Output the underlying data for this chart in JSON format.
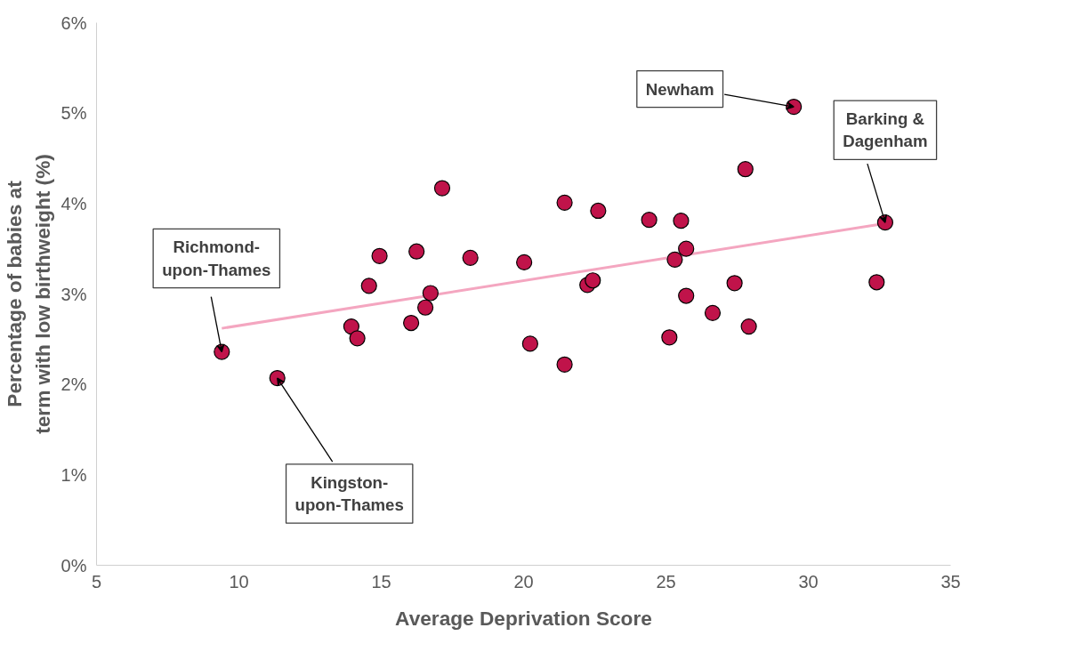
{
  "chart_data": {
    "type": "scatter",
    "xlabel": "Average Deprivation Score",
    "ylabel": "Percentage of babies at term with low birthweight (%)",
    "xlim": [
      5,
      35
    ],
    "xticks": [
      5,
      10,
      15,
      20,
      25,
      30,
      35
    ],
    "ylim": [
      0,
      6
    ],
    "yticks": [
      {
        "value": 0,
        "label": "0%"
      },
      {
        "value": 1,
        "label": "1%"
      },
      {
        "value": 2,
        "label": "2%"
      },
      {
        "value": 3,
        "label": "3%"
      },
      {
        "value": 4,
        "label": "4%"
      },
      {
        "value": 5,
        "label": "5%"
      },
      {
        "value": 6,
        "label": "6%"
      }
    ],
    "grid": false,
    "series": [
      {
        "type": "line",
        "color": "#f4a6c0",
        "x": [
          9.4,
          32.5
        ],
        "values": [
          2.62,
          3.77
        ]
      },
      {
        "type": "scatter",
        "color": "#c0134a",
        "marker": "circle",
        "x": [
          9.4,
          11.35,
          13.95,
          14.16,
          14.57,
          14.94,
          16.05,
          16.24,
          16.55,
          16.73,
          17.14,
          18.13,
          20.02,
          20.23,
          21.44,
          21.44,
          22.24,
          22.43,
          22.62,
          24.41,
          25.12,
          25.31,
          25.53,
          25.71,
          25.71,
          26.64,
          27.41,
          27.79,
          27.91,
          29.49,
          32.4,
          32.7
        ],
        "values": [
          2.36,
          2.07,
          2.64,
          2.51,
          3.09,
          3.42,
          2.68,
          3.47,
          2.85,
          3.01,
          4.17,
          3.4,
          3.35,
          2.45,
          4.01,
          2.22,
          3.1,
          3.15,
          3.92,
          3.82,
          2.52,
          3.38,
          3.81,
          3.5,
          2.98,
          2.79,
          3.12,
          4.38,
          2.64,
          5.07,
          3.13,
          3.79
        ]
      }
    ],
    "annotations": [
      {
        "text": "Richmond-\nupon-Thames",
        "x": 9.4,
        "y": 2.36
      },
      {
        "text": "Kingston-\nupon-Thames",
        "x": 11.35,
        "y": 2.07
      },
      {
        "text": "Newham",
        "x": 29.49,
        "y": 5.07
      },
      {
        "text": "Barking &\nDagenham",
        "x": 32.7,
        "y": 3.79
      }
    ]
  }
}
